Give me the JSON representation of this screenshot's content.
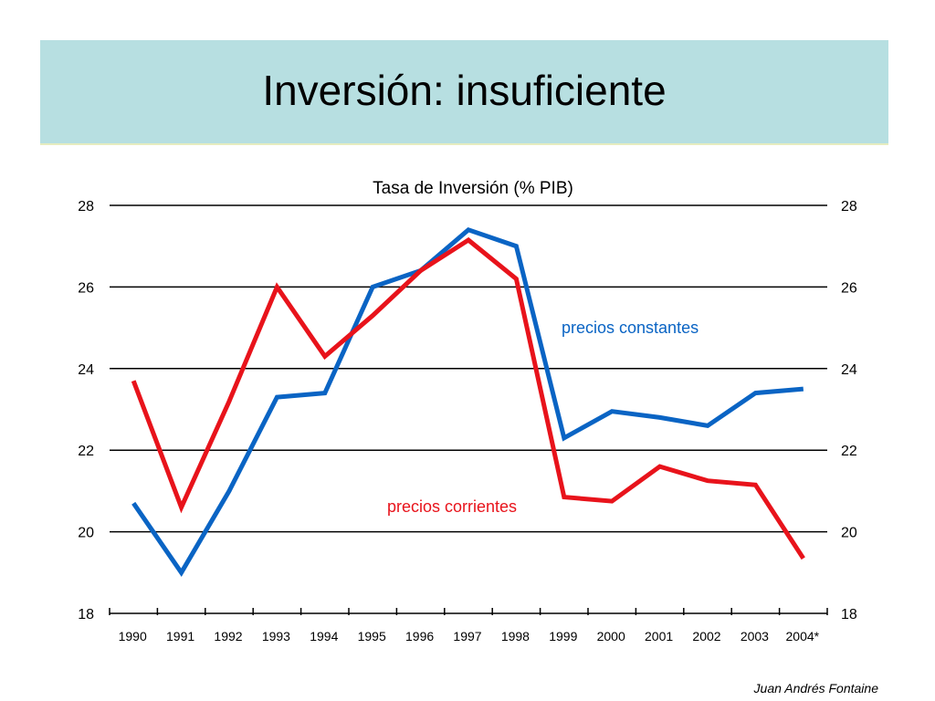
{
  "slide": {
    "title": "Inversión: insuficiente",
    "author": "Juan Andrés Fontaine"
  },
  "chart_data": {
    "type": "line",
    "title": "Tasa de Inversión (% PIB)",
    "xlabel": "",
    "ylabel": "",
    "categories": [
      "1990",
      "1991",
      "1992",
      "1993",
      "1994",
      "1995",
      "1996",
      "1997",
      "1998",
      "1999",
      "2000",
      "2001",
      "2002",
      "2003",
      "2004*"
    ],
    "ylim": [
      18,
      28
    ],
    "yticks": [
      "18",
      "20",
      "22",
      "24",
      "26",
      "28"
    ],
    "grid": true,
    "series": [
      {
        "name": "precios constantes",
        "color": "#0a64c4",
        "values": [
          20.7,
          19.0,
          21.0,
          23.3,
          23.4,
          26.0,
          26.4,
          27.4,
          27.0,
          22.3,
          22.95,
          22.8,
          22.6,
          23.4,
          23.5
        ]
      },
      {
        "name": "precios corrientes",
        "color": "#e8131b",
        "values": [
          23.7,
          20.6,
          23.2,
          26.0,
          24.3,
          25.3,
          26.4,
          27.15,
          26.2,
          20.85,
          20.75,
          21.6,
          21.25,
          21.15,
          19.35
        ]
      }
    ]
  }
}
